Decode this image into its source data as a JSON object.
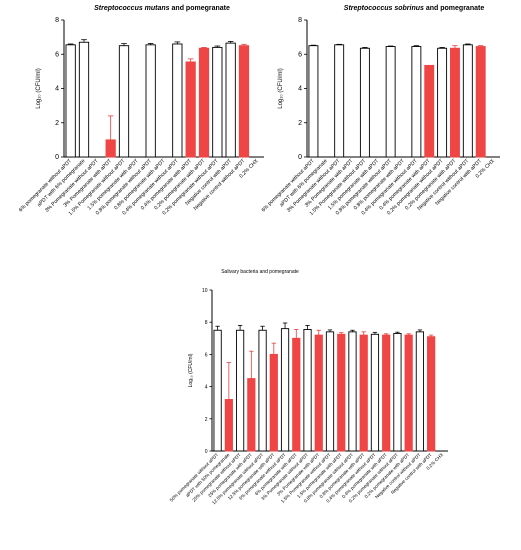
{
  "colors": {
    "without_aPDT": "#ffffff",
    "with_aPDT": "#f04545",
    "axis": "#000000",
    "error_black": "#000000",
    "error_red": "#e04040"
  },
  "chart_data": [
    {
      "type": "bar",
      "title": "Streptococcus mutans and pomegranate",
      "title_italic_part": "Streptococcus mutans",
      "title_rest": " and pomegranate",
      "ylabel": "Log₁₀ (CFU/ml)",
      "ylim": [
        0,
        8
      ],
      "yticks": [
        0,
        2,
        4,
        6,
        8
      ],
      "categories": [
        "6% pomegranate without aPDT",
        "aPDT with 6% pomegranate",
        "3% Pomegranate without aPDT",
        "3% Pomegranate with aPDT",
        "1.5% Pomegranate without aPDT",
        "1.5% pomegranate with aPDT",
        "0.8% pomegranate without aPDT",
        "0.8% pomegranate with aPDT",
        "0.4% pomegranate without aPDT",
        "0.4% pomegranate with aPDT",
        "0.2% pomegranate with aPDT",
        "0.2% pomegranate without aPDT",
        "Negative control with aPDT",
        "Negative control without aPDT",
        "0.2% CHX"
      ],
      "values": [
        6.55,
        6.7,
        null,
        1.0,
        6.5,
        null,
        6.55,
        null,
        6.6,
        5.55,
        6.35,
        6.4,
        6.65,
        6.5,
        null
      ],
      "errors": [
        0.05,
        0.15,
        null,
        1.4,
        0.12,
        null,
        0.08,
        null,
        0.12,
        0.18,
        0.05,
        0.08,
        0.1,
        0.08,
        null
      ],
      "filled": [
        false,
        false,
        false,
        true,
        false,
        false,
        false,
        false,
        false,
        true,
        true,
        false,
        false,
        true,
        false
      ]
    },
    {
      "type": "bar",
      "title": "Streptococcus sobrinus and pomegranate",
      "title_italic_part": "Streptococcus sobrinus",
      "title_rest": " and pomegranate",
      "ylabel": "Log₁₀ (CFU/ml)",
      "ylim": [
        0,
        8
      ],
      "yticks": [
        0,
        2,
        4,
        6,
        8
      ],
      "categories": [
        "6% pomegranate without aPDT",
        "aPDT with 6% pomegranate",
        "3% Pomegranate without aPDT",
        "3% Pomegranate with aPDT",
        "1.5% Pomegranate without aPDT",
        "1.5% pomegranate with aPDT",
        "0.8% pomegranate without aPDT",
        "0.8% pomegranate with aPDT",
        "0.4% pomegranate without aPDT",
        "0.4% pomegranate with aPDT",
        "0.2% pomegranate without aPDT",
        "0.2% pomegranate with aPDT",
        "Negative control without aPDT",
        "Negative control with aPDT",
        "0.2% CHX"
      ],
      "values": [
        6.5,
        null,
        6.55,
        null,
        6.35,
        null,
        6.45,
        null,
        6.45,
        5.35,
        6.35,
        6.35,
        6.55,
        6.45,
        null
      ],
      "errors": [
        0.03,
        null,
        0.03,
        null,
        0.05,
        null,
        0.03,
        null,
        0.05,
        0.0,
        0.05,
        0.15,
        0.05,
        0.05,
        null
      ],
      "filled": [
        false,
        false,
        false,
        false,
        false,
        false,
        false,
        false,
        false,
        true,
        false,
        true,
        false,
        true,
        false
      ]
    },
    {
      "type": "bar",
      "title": "Salivary bacteria and pomegranate",
      "ylabel": "Log₁₀ (CFU/ml)",
      "ylim": [
        0,
        10
      ],
      "yticks": [
        0,
        2,
        4,
        6,
        8,
        10
      ],
      "categories": [
        "50% pomegranate without aPDT",
        "aPDT with 50% pomegranate",
        "25% pomegranate without aPDT",
        "25% pomegranate with aPDT",
        "12.5% pomegranate without aPDT",
        "12.5% pomegranate with aPDT",
        "6% pomegranate without aPDT",
        "6% pomegranate with aPDT",
        "3% Pomegranate without aPDT",
        "3% Pomegranate with aPDT",
        "1.5% Pomegranate without aPDT",
        "1.5% pomegranate with aPDT",
        "0.8% pomegranate without aPDT",
        "0.8% pomegranate with aPDT",
        "0.4% pomegranate without aPDT",
        "0.4% pomegranate with aPDT",
        "0.2% pomegranate without aPDT",
        "0.2% pomegranate with aPDT",
        "Negative control without aPDT",
        "Negative control with aPDT",
        "0.2% CHX"
      ],
      "values": [
        7.5,
        3.2,
        7.5,
        4.5,
        7.5,
        6.0,
        7.6,
        7.0,
        7.55,
        7.2,
        7.4,
        7.25,
        7.4,
        7.2,
        7.25,
        7.2,
        7.3,
        7.2,
        7.4,
        7.1,
        null
      ],
      "errors": [
        0.25,
        2.3,
        0.3,
        1.7,
        0.25,
        0.7,
        0.35,
        0.55,
        0.25,
        0.3,
        0.12,
        0.1,
        0.1,
        0.2,
        0.12,
        0.08,
        0.08,
        0.08,
        0.12,
        0.1,
        null
      ],
      "filled": [
        false,
        true,
        false,
        true,
        false,
        true,
        false,
        true,
        false,
        true,
        false,
        true,
        false,
        true,
        false,
        true,
        false,
        true,
        false,
        true,
        false
      ]
    }
  ]
}
